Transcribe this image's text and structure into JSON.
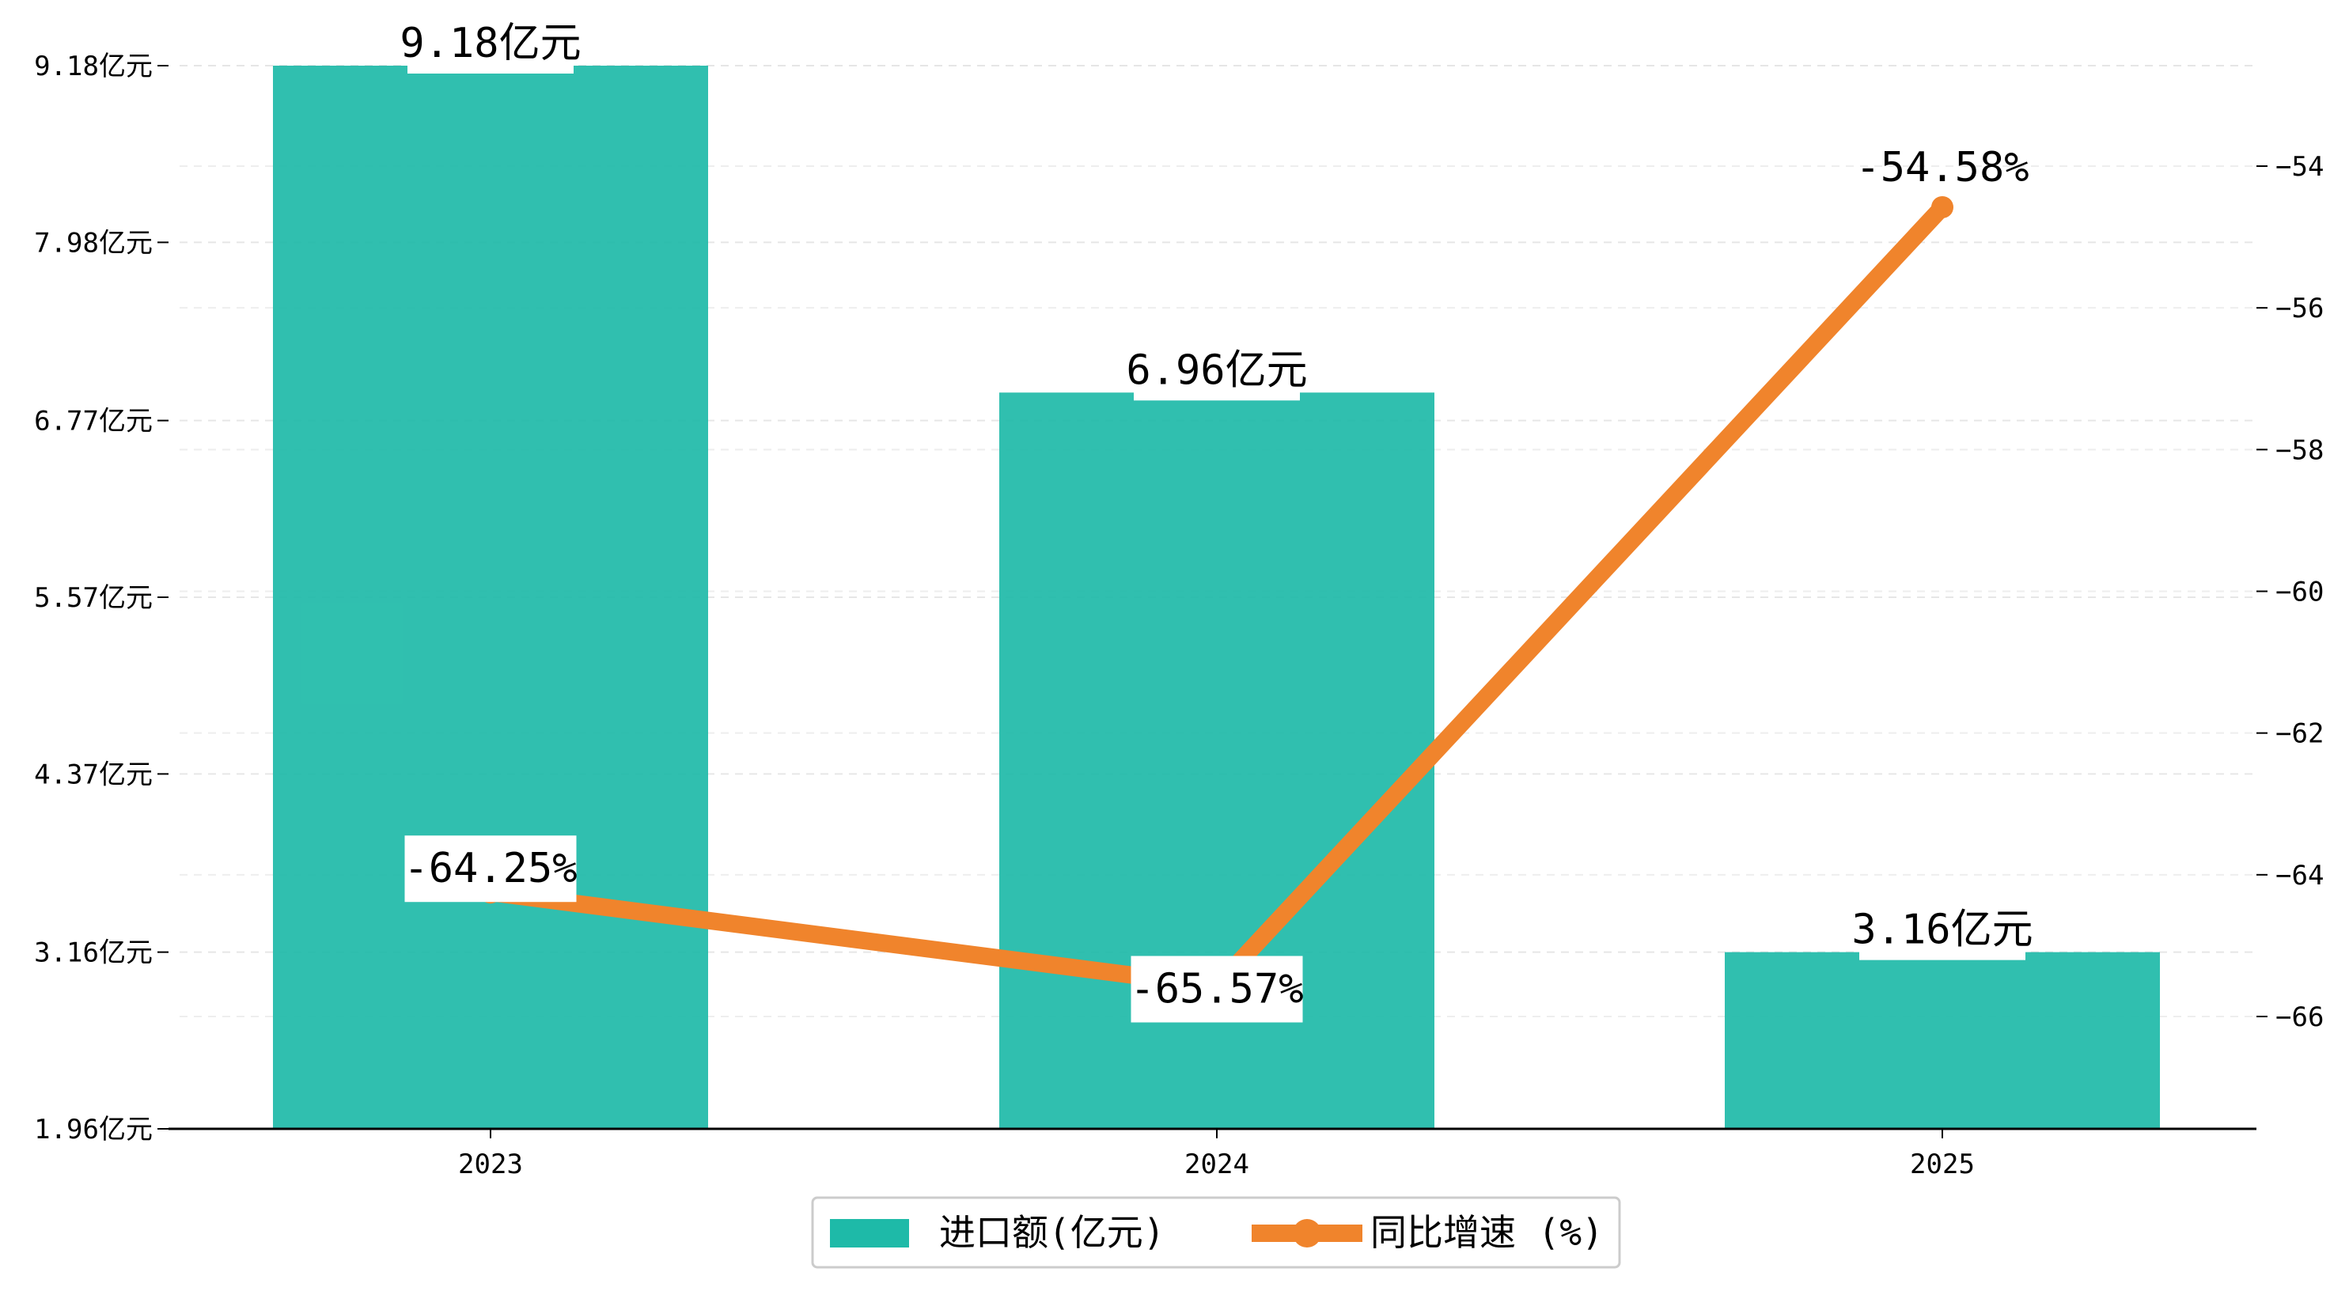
{
  "chart_data": {
    "type": "bar",
    "categories": [
      "2023",
      "2024",
      "2025"
    ],
    "series": [
      {
        "name": "进口额(亿元)",
        "type": "bar",
        "axis": "left",
        "values": [
          9.18,
          6.96,
          3.16
        ],
        "labels": [
          "9.18亿元",
          "6.96亿元",
          "3.16亿元"
        ],
        "color": "#1ebaa8"
      },
      {
        "name": "同比增速 (%)",
        "type": "line",
        "axis": "right",
        "values": [
          -64.25,
          -65.57,
          -54.58
        ],
        "labels": [
          "-64.25%",
          "-65.57%",
          "-54.58%"
        ],
        "color": "#f0842c"
      }
    ],
    "left_axis": {
      "ylim": [
        1.96,
        9.18
      ],
      "ticks": [
        9.18,
        7.98,
        6.77,
        5.57,
        4.37,
        3.16,
        1.96
      ],
      "tick_labels": [
        "9.18亿元",
        "7.98亿元",
        "6.77亿元",
        "5.57亿元",
        "4.37亿元",
        "3.16亿元",
        "1.96亿元"
      ]
    },
    "right_axis": {
      "ylim": [
        -67.6,
        -53.0
      ],
      "ticks": [
        -54,
        -56,
        -58,
        -60,
        -62,
        -64,
        -66
      ],
      "tick_labels": [
        "−54",
        "−56",
        "−58",
        "−60",
        "−62",
        "−64",
        "−66"
      ]
    },
    "grid": true,
    "legend": "bottom-center"
  }
}
